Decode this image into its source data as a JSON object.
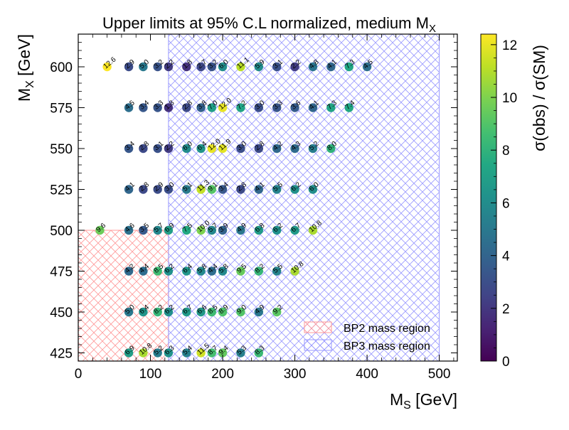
{
  "chart_data": {
    "type": "scatter",
    "title": "Upper limits at 95% C.L normalized, medium M",
    "title_sub": "X",
    "xlabel": "M",
    "xlabel_sub": "S",
    "xlabel_unit": " [GeV]",
    "ylabel": "M",
    "ylabel_sub": "X",
    "ylabel_unit": " [GeV]",
    "xlim": [
      0,
      525
    ],
    "ylim": [
      420,
      620
    ],
    "xticks": [
      0,
      100,
      200,
      300,
      400,
      500
    ],
    "yticks": [
      425,
      450,
      475,
      500,
      525,
      550,
      575,
      600
    ],
    "xtick_labels": [
      "0",
      "100",
      "200",
      "300",
      "400",
      "500"
    ],
    "ytick_labels": [
      "425",
      "450",
      "475",
      "500",
      "525",
      "550",
      "575",
      "600"
    ],
    "colorbar": {
      "label": "σ(obs) / σ(SM)",
      "range": [
        0,
        12.4
      ],
      "ticks": [
        0,
        2,
        4,
        6,
        8,
        10,
        12
      ],
      "tick_labels": [
        "0",
        "2",
        "4",
        "6",
        "8",
        "10",
        "12"
      ],
      "colormap": "viridis"
    },
    "regions": [
      {
        "name": "BP2 mass region",
        "x": [
          0,
          125
        ],
        "y": [
          420,
          500
        ],
        "color": "#ff9999"
      },
      {
        "name": "BP3 mass region",
        "x": [
          125,
          500
        ],
        "y": [
          420,
          620
        ],
        "color": "#9999ff"
      }
    ],
    "legend_position": "lower-right",
    "points": [
      {
        "x": 40,
        "y": 600,
        "v": 12.6
      },
      {
        "x": 70,
        "y": 600,
        "v": 2.9
      },
      {
        "x": 90,
        "y": 600,
        "v": 5.0
      },
      {
        "x": 110,
        "y": 600,
        "v": 3.2
      },
      {
        "x": 125,
        "y": 600,
        "v": 2.2
      },
      {
        "x": 150,
        "y": 600,
        "v": 1.8
      },
      {
        "x": 170,
        "y": 600,
        "v": 2.7
      },
      {
        "x": 185,
        "y": 600,
        "v": 3.2
      },
      {
        "x": 200,
        "y": 600,
        "v": 6.0
      },
      {
        "x": 225,
        "y": 600,
        "v": 11.1
      },
      {
        "x": 250,
        "y": 600,
        "v": 5.9
      },
      {
        "x": 275,
        "y": 600,
        "v": 3.1
      },
      {
        "x": 300,
        "y": 600,
        "v": 2.2
      },
      {
        "x": 325,
        "y": 600,
        "v": 4.8
      },
      {
        "x": 350,
        "y": 600,
        "v": 4.1
      },
      {
        "x": 375,
        "y": 600,
        "v": 7.3
      },
      {
        "x": 400,
        "y": 600,
        "v": 4.5
      },
      {
        "x": 70,
        "y": 575,
        "v": 4.5
      },
      {
        "x": 90,
        "y": 575,
        "v": 3.4
      },
      {
        "x": 110,
        "y": 575,
        "v": 3.3
      },
      {
        "x": 125,
        "y": 575,
        "v": 1.8
      },
      {
        "x": 150,
        "y": 575,
        "v": 2.8
      },
      {
        "x": 170,
        "y": 575,
        "v": 3.8
      },
      {
        "x": 185,
        "y": 575,
        "v": 7.0
      },
      {
        "x": 200,
        "y": 575,
        "v": 12.0
      },
      {
        "x": 225,
        "y": 575,
        "v": 7.2
      },
      {
        "x": 250,
        "y": 575,
        "v": 3.0
      },
      {
        "x": 275,
        "y": 575,
        "v": 3.3
      },
      {
        "x": 300,
        "y": 575,
        "v": 3.6
      },
      {
        "x": 325,
        "y": 575,
        "v": 4.1
      },
      {
        "x": 350,
        "y": 575,
        "v": 7.3
      },
      {
        "x": 375,
        "y": 575,
        "v": 7.4
      },
      {
        "x": 70,
        "y": 550,
        "v": 3.4
      },
      {
        "x": 90,
        "y": 550,
        "v": 2.8
      },
      {
        "x": 110,
        "y": 550,
        "v": 3.1
      },
      {
        "x": 125,
        "y": 550,
        "v": 2.2
      },
      {
        "x": 150,
        "y": 550,
        "v": 6.0
      },
      {
        "x": 170,
        "y": 550,
        "v": 6.4
      },
      {
        "x": 185,
        "y": 550,
        "v": 12.0
      },
      {
        "x": 200,
        "y": 550,
        "v": 11.9
      },
      {
        "x": 225,
        "y": 550,
        "v": 3.0
      },
      {
        "x": 250,
        "y": 550,
        "v": 2.8
      },
      {
        "x": 275,
        "y": 550,
        "v": 4.2
      },
      {
        "x": 300,
        "y": 550,
        "v": 4.3
      },
      {
        "x": 325,
        "y": 550,
        "v": 5.2
      },
      {
        "x": 350,
        "y": 550,
        "v": 8.0
      },
      {
        "x": 70,
        "y": 525,
        "v": 4.1
      },
      {
        "x": 90,
        "y": 525,
        "v": 2.8
      },
      {
        "x": 110,
        "y": 525,
        "v": 2.9
      },
      {
        "x": 125,
        "y": 525,
        "v": 3.0
      },
      {
        "x": 150,
        "y": 525,
        "v": 5.1
      },
      {
        "x": 170,
        "y": 525,
        "v": 11.3
      },
      {
        "x": 185,
        "y": 525,
        "v": 9.1
      },
      {
        "x": 200,
        "y": 525,
        "v": 3.4
      },
      {
        "x": 225,
        "y": 525,
        "v": 2.8
      },
      {
        "x": 250,
        "y": 525,
        "v": 4.1
      },
      {
        "x": 275,
        "y": 525,
        "v": 5.5
      },
      {
        "x": 300,
        "y": 525,
        "v": 6.2
      },
      {
        "x": 325,
        "y": 525,
        "v": 6.0
      },
      {
        "x": 30,
        "y": 500,
        "v": 9.6
      },
      {
        "x": 70,
        "y": 500,
        "v": 4.6
      },
      {
        "x": 90,
        "y": 500,
        "v": 3.5
      },
      {
        "x": 110,
        "y": 500,
        "v": 5.7
      },
      {
        "x": 125,
        "y": 500,
        "v": 6.9
      },
      {
        "x": 150,
        "y": 500,
        "v": 7.5
      },
      {
        "x": 170,
        "y": 500,
        "v": 10.0
      },
      {
        "x": 185,
        "y": 500,
        "v": 5.7
      },
      {
        "x": 200,
        "y": 500,
        "v": 3.9
      },
      {
        "x": 225,
        "y": 500,
        "v": 4.9
      },
      {
        "x": 250,
        "y": 500,
        "v": 6.8
      },
      {
        "x": 275,
        "y": 500,
        "v": 6.2
      },
      {
        "x": 300,
        "y": 500,
        "v": 6.7
      },
      {
        "x": 325,
        "y": 500,
        "v": 10.8
      },
      {
        "x": 70,
        "y": 475,
        "v": 4.2
      },
      {
        "x": 90,
        "y": 475,
        "v": 4.4
      },
      {
        "x": 110,
        "y": 475,
        "v": 8.5
      },
      {
        "x": 125,
        "y": 475,
        "v": 6.2
      },
      {
        "x": 150,
        "y": 475,
        "v": 6.4
      },
      {
        "x": 170,
        "y": 475,
        "v": 5.8
      },
      {
        "x": 185,
        "y": 475,
        "v": 4.4
      },
      {
        "x": 200,
        "y": 475,
        "v": 5.8
      },
      {
        "x": 225,
        "y": 475,
        "v": 9.5
      },
      {
        "x": 250,
        "y": 475,
        "v": 8.2
      },
      {
        "x": 275,
        "y": 475,
        "v": 5.5
      },
      {
        "x": 300,
        "y": 475,
        "v": 10.8
      },
      {
        "x": 70,
        "y": 450,
        "v": 5.0
      },
      {
        "x": 90,
        "y": 450,
        "v": 6.4
      },
      {
        "x": 110,
        "y": 450,
        "v": 8.2
      },
      {
        "x": 125,
        "y": 450,
        "v": 6.2
      },
      {
        "x": 150,
        "y": 450,
        "v": 6.7
      },
      {
        "x": 170,
        "y": 450,
        "v": 6.6
      },
      {
        "x": 185,
        "y": 450,
        "v": 8.5
      },
      {
        "x": 200,
        "y": 450,
        "v": 8.9
      },
      {
        "x": 225,
        "y": 450,
        "v": 9.0
      },
      {
        "x": 250,
        "y": 450,
        "v": 4.9
      },
      {
        "x": 275,
        "y": 450,
        "v": 9.2
      },
      {
        "x": 70,
        "y": 425,
        "v": 6.9
      },
      {
        "x": 90,
        "y": 425,
        "v": 10.8
      },
      {
        "x": 110,
        "y": 425,
        "v": 5.2
      },
      {
        "x": 125,
        "y": 425,
        "v": 6.3
      },
      {
        "x": 150,
        "y": 425,
        "v": 5.4
      },
      {
        "x": 170,
        "y": 425,
        "v": 11.5
      },
      {
        "x": 185,
        "y": 425,
        "v": 8.7
      },
      {
        "x": 200,
        "y": 425,
        "v": 9.4
      },
      {
        "x": 225,
        "y": 425,
        "v": 5.3
      },
      {
        "x": 250,
        "y": 425,
        "v": 8.3
      }
    ]
  }
}
